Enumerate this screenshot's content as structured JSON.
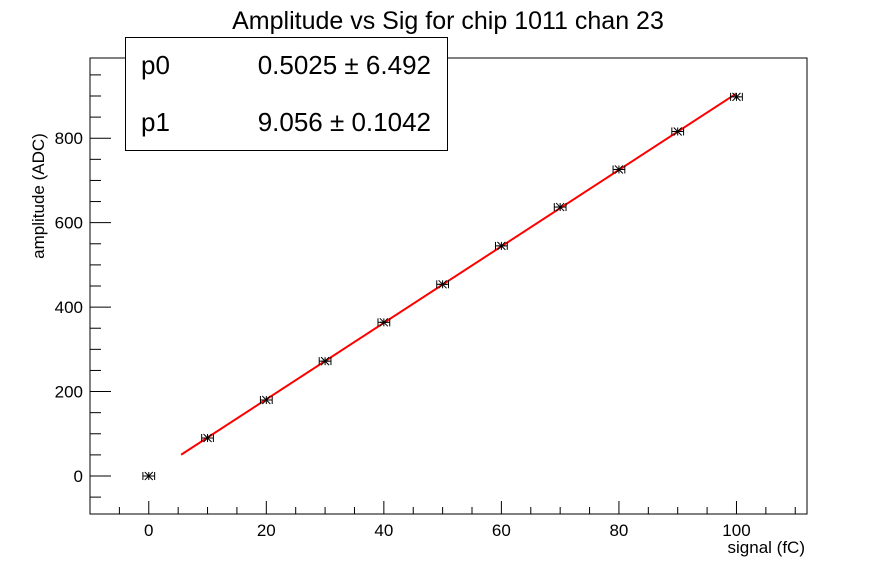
{
  "chart_data": {
    "type": "scatter",
    "title": "Amplitude vs Sig for chip 1011 chan 23",
    "xlabel": "signal (fC)",
    "ylabel": "amplitude (ADC)",
    "xlim": [
      -10,
      112
    ],
    "ylim": [
      -90,
      990
    ],
    "xticks": [
      0,
      20,
      40,
      60,
      80,
      100
    ],
    "yticks": [
      0,
      200,
      400,
      600,
      800
    ],
    "x_minor_step": 5,
    "y_minor_step": 50,
    "grid": false,
    "points": {
      "x": [
        0,
        10,
        20,
        30,
        40,
        50,
        60,
        70,
        80,
        90,
        100
      ],
      "y": [
        0,
        90,
        180,
        272,
        364,
        454,
        545,
        637,
        726,
        816,
        898
      ],
      "xerr": 1,
      "marker": "star",
      "color": "#000000"
    },
    "fit": {
      "function": "pol1",
      "x_range": [
        5.5,
        100
      ],
      "p0": 0.5025,
      "p1": 9.056,
      "color": "#ff0000"
    },
    "stats": [
      {
        "name": "p0",
        "value": "0.5025 ± 6.492"
      },
      {
        "name": "p1",
        "value": "9.056 ± 0.1042"
      }
    ]
  }
}
